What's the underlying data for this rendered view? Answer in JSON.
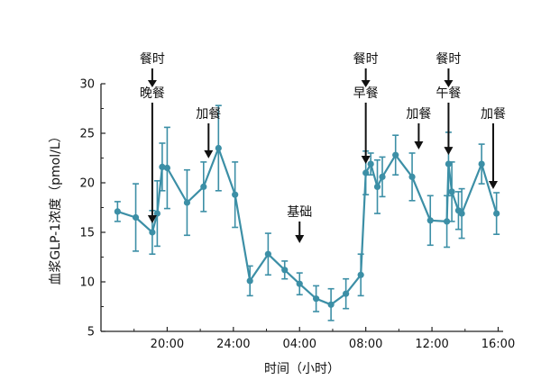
{
  "chart_data": {
    "type": "line",
    "xlabel": "时间（小时）",
    "ylabel": "血浆GLP-1浓度（pmol/L）",
    "xlim": [
      16,
      40.3
    ],
    "ylim": [
      5,
      30
    ],
    "x_ticks": [
      20,
      24,
      28,
      32,
      36,
      40
    ],
    "x_tick_labels": [
      "20:00",
      "24:00",
      "04:00",
      "08:00",
      "12:00",
      "16:00"
    ],
    "y_ticks": [
      5,
      10,
      15,
      20,
      25,
      30
    ],
    "y_tick_labels": [
      "5",
      "10",
      "15",
      "20",
      "25",
      "30"
    ],
    "grid": false,
    "color": "#3c8fa6",
    "series": [
      {
        "x": [
          17.0,
          18.1,
          19.1,
          19.4,
          19.7,
          20.0,
          21.2,
          22.2,
          23.1,
          24.1,
          25.0,
          26.1,
          27.1,
          28.0,
          29.0,
          29.9,
          30.8,
          31.7,
          32.0,
          32.3,
          32.7,
          33.0,
          33.8,
          34.8,
          35.9,
          36.9,
          37.0,
          37.2,
          37.6,
          37.8,
          39.0,
          39.9
        ],
        "y": [
          17.1,
          16.5,
          15.0,
          16.9,
          21.6,
          21.5,
          18.0,
          19.6,
          23.5,
          18.8,
          10.1,
          12.8,
          11.2,
          9.8,
          8.3,
          7.7,
          8.8,
          10.7,
          21.0,
          21.9,
          19.6,
          20.6,
          22.8,
          20.6,
          16.2,
          16.1,
          21.9,
          19.1,
          17.2,
          16.9,
          21.9,
          16.9
        ],
        "err": [
          1.0,
          3.4,
          2.2,
          3.3,
          2.4,
          4.1,
          3.3,
          2.5,
          4.3,
          3.3,
          1.5,
          2.1,
          0.9,
          1.1,
          1.3,
          1.6,
          1.5,
          2.1,
          2.2,
          1.1,
          2.7,
          2.0,
          2.0,
          2.4,
          2.5,
          2.6,
          3.2,
          3.0,
          1.9,
          2.5,
          2.0,
          2.1
        ]
      }
    ],
    "annotations": [
      {
        "lines": [
          "餐时",
          "晚餐"
        ],
        "x": 19.1
      },
      {
        "lines": [
          "加餐"
        ],
        "x": 22.5
      },
      {
        "lines": [
          "基础"
        ],
        "x": 28.0
      },
      {
        "lines": [
          "餐时",
          "早餐"
        ],
        "x": 32.0
      },
      {
        "lines": [
          "加餐"
        ],
        "x": 35.2
      },
      {
        "lines": [
          "餐时",
          "午餐"
        ],
        "x": 37.0
      },
      {
        "lines": [
          "加餐"
        ],
        "x": 39.7
      }
    ]
  }
}
